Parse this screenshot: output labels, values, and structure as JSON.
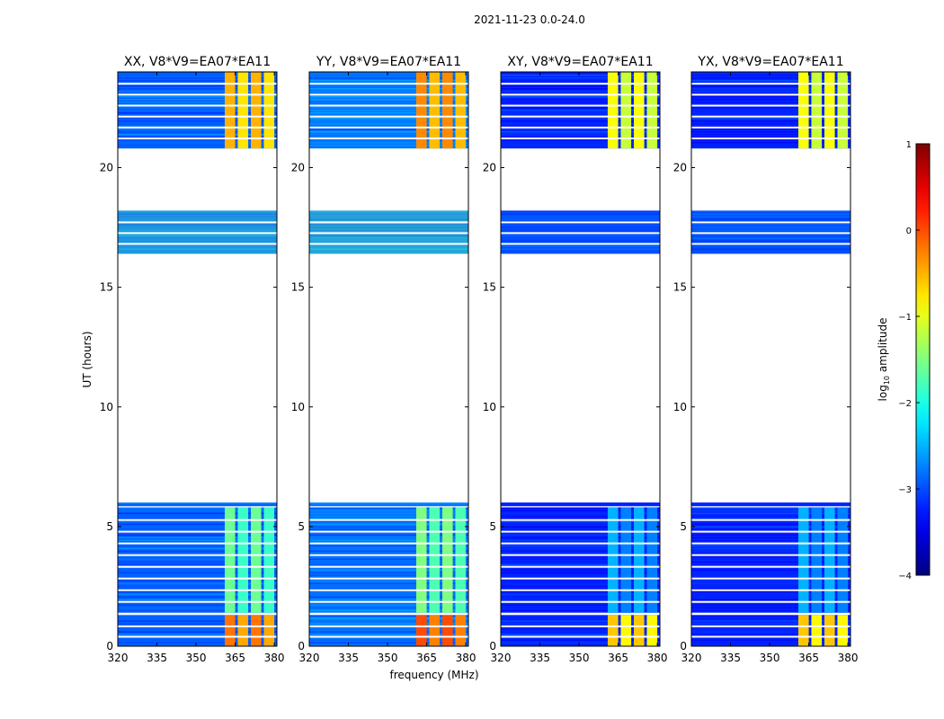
{
  "chart_data": {
    "type": "heatmap",
    "suptitle": "2021-11-23 0.0-24.0",
    "xlabel": "frequency (MHz)",
    "ylabel": "UT (hours)",
    "xlim": [
      320,
      381
    ],
    "ylim": [
      0,
      24
    ],
    "xticks": [
      320,
      335,
      350,
      365,
      380
    ],
    "yticks": [
      0,
      5,
      10,
      15,
      20
    ],
    "panels": [
      {
        "title": "XX, V8*V9=EA07*EA11",
        "background_log_amp": -2.9,
        "channel_log_amp": -0.6,
        "band_log_amp": -1.7
      },
      {
        "title": "YY, V8*V9=EA07*EA11",
        "background_log_amp": -2.8,
        "channel_log_amp": -0.4,
        "band_log_amp": -1.6
      },
      {
        "title": "XY, V8*V9=EA07*EA11",
        "background_log_amp": -3.2,
        "channel_log_amp": -1.0,
        "band_log_amp": -2.6
      },
      {
        "title": "YX, V8*V9=EA07*EA11",
        "background_log_amp": -3.2,
        "channel_log_amp": -1.0,
        "band_log_amp": -2.6
      }
    ],
    "data_segments_ut_hours": [
      [
        0,
        1.3
      ],
      [
        1.4,
        5.8
      ],
      [
        5.85,
        6.0
      ],
      [
        16.4,
        18.2
      ],
      [
        20.8,
        24.0
      ]
    ],
    "bright_channels_mhz": [
      [
        361,
        365
      ],
      [
        366,
        370
      ],
      [
        371,
        375
      ],
      [
        376,
        380
      ]
    ],
    "colorbar": {
      "label_prefix": "log",
      "label_sub": "10",
      "label_suffix": " amplitude",
      "vmin": -4,
      "vmax": 1,
      "ticks": [
        "1",
        "0",
        "−1",
        "−2",
        "−3",
        "−4"
      ],
      "tick_values": [
        1,
        0,
        -1,
        -2,
        -3,
        -4
      ]
    }
  }
}
